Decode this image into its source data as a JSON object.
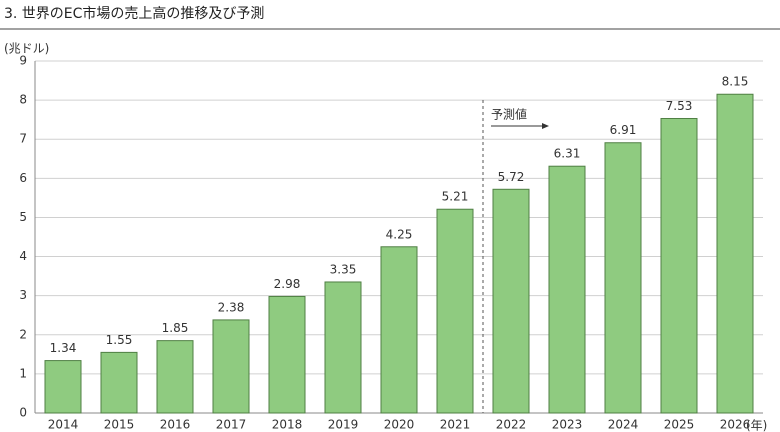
{
  "chart_data": {
    "type": "bar",
    "title": "3. 世界のEC市場の売上高の推移及び予測",
    "y_label": "(兆ドル)",
    "x_unit": "(年)",
    "annotation": "予測値",
    "categories": [
      "2014",
      "2015",
      "2016",
      "2017",
      "2018",
      "2019",
      "2020",
      "2021",
      "2022",
      "2023",
      "2024",
      "2025",
      "2026"
    ],
    "values": [
      1.34,
      1.55,
      1.85,
      2.38,
      2.98,
      3.35,
      4.25,
      5.21,
      5.72,
      6.31,
      6.91,
      7.53,
      8.15
    ],
    "color": "#8fcb80",
    "ylim": [
      0,
      9
    ],
    "yticks": [
      0,
      1,
      2,
      3,
      4,
      5,
      6,
      7,
      8,
      9
    ],
    "grid": true
  }
}
